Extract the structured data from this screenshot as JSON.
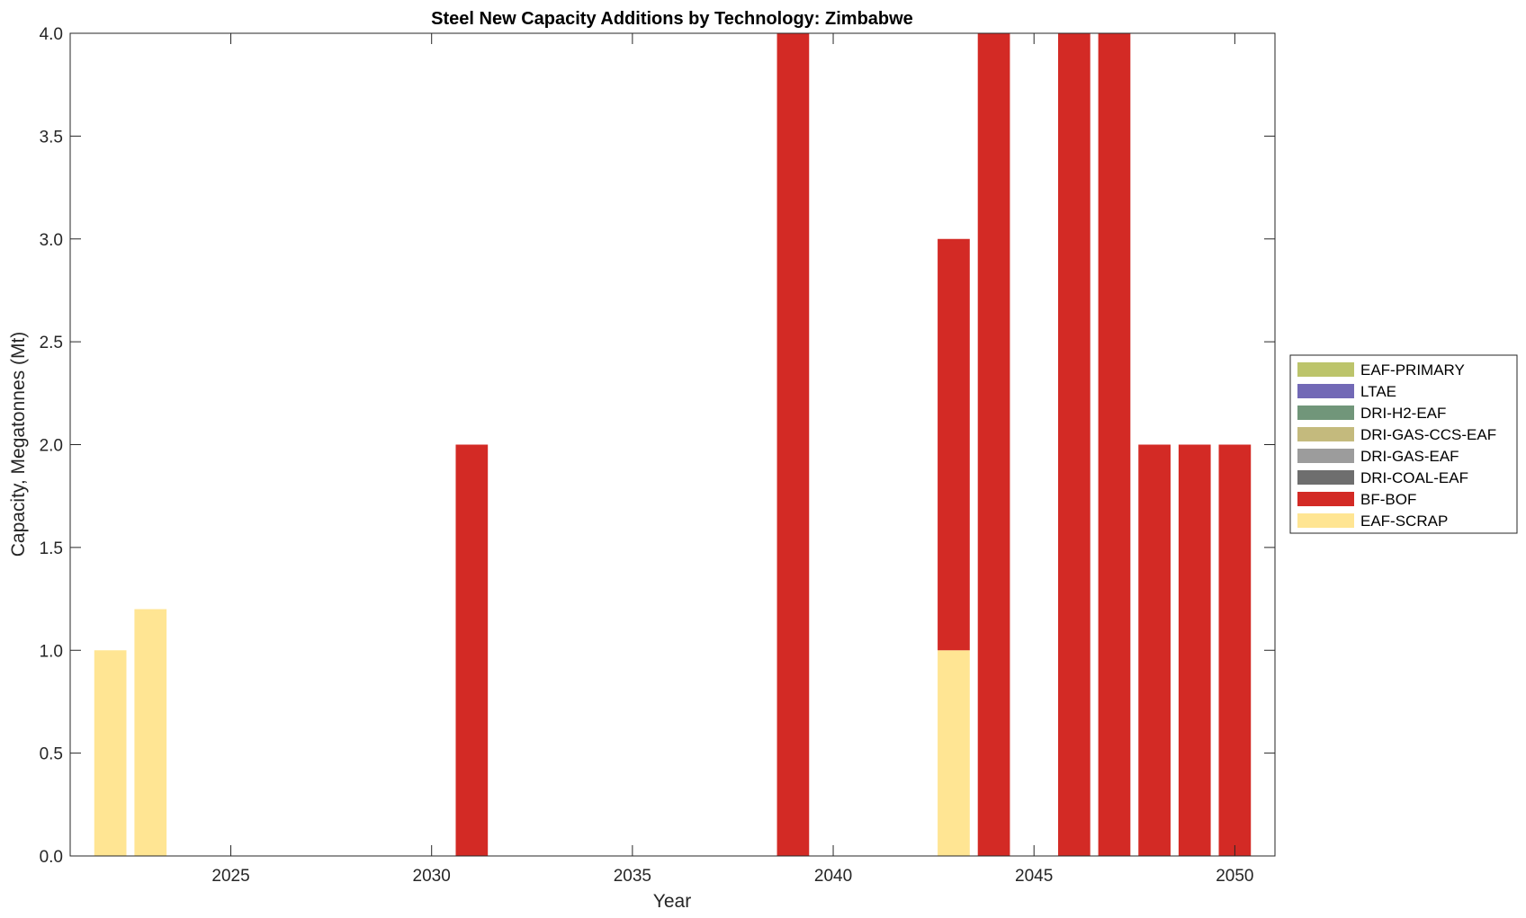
{
  "chart_data": {
    "type": "bar",
    "stacked": true,
    "title": "Steel New Capacity Additions by Technology: Zimbabwe",
    "xlabel": "Year",
    "ylabel": "Capacity, Megatonnes (Mt)",
    "xlim": [
      2021,
      2051
    ],
    "ylim": [
      0,
      4
    ],
    "xticks": [
      2025,
      2030,
      2035,
      2040,
      2045,
      2050
    ],
    "yticks": [
      "0.0",
      "0.5",
      "1.0",
      "1.5",
      "2.0",
      "2.5",
      "3.0",
      "3.5",
      "4.0"
    ],
    "grid": false,
    "legend_placement": "right",
    "categories": [
      2022,
      2023,
      2031,
      2039,
      2043,
      2044,
      2046,
      2047,
      2048,
      2049,
      2050
    ],
    "series": [
      {
        "name": "EAF-SCRAP",
        "color": "#FFE593",
        "values": [
          1.0,
          1.2,
          0,
          0,
          1.0,
          0,
          0,
          0,
          0,
          0,
          0
        ]
      },
      {
        "name": "BF-BOF",
        "color": "#D32A25",
        "values": [
          0,
          0,
          2.0,
          4.0,
          2.0,
          4.0,
          4.0,
          4.0,
          2.0,
          2.0,
          2.0
        ]
      },
      {
        "name": "DRI-COAL-EAF",
        "color": "#6E6E6E",
        "values": [
          0,
          0,
          0,
          0,
          0,
          0,
          0,
          0,
          0,
          0,
          0
        ]
      },
      {
        "name": "DRI-GAS-EAF",
        "color": "#9C9C9C",
        "values": [
          0,
          0,
          0,
          0,
          0,
          0,
          0,
          0,
          0,
          0,
          0
        ]
      },
      {
        "name": "DRI-GAS-CCS-EAF",
        "color": "#C4BA7D",
        "values": [
          0,
          0,
          0,
          0,
          0,
          0,
          0,
          0,
          0,
          0,
          0
        ]
      },
      {
        "name": "DRI-H2-EAF",
        "color": "#71967A",
        "values": [
          0,
          0,
          0,
          0,
          0,
          0,
          0,
          0,
          0,
          0,
          0
        ]
      },
      {
        "name": "LTAE",
        "color": "#7269B6",
        "values": [
          0,
          0,
          0,
          0,
          0,
          0,
          0,
          0,
          0,
          0,
          0
        ]
      },
      {
        "name": "EAF-PRIMARY",
        "color": "#BCC46B",
        "values": [
          0,
          0,
          0,
          0,
          0,
          0,
          0,
          0,
          0,
          0,
          0
        ]
      }
    ],
    "legend_order": [
      "EAF-PRIMARY",
      "LTAE",
      "DRI-H2-EAF",
      "DRI-GAS-CCS-EAF",
      "DRI-GAS-EAF",
      "DRI-COAL-EAF",
      "BF-BOF",
      "EAF-SCRAP"
    ]
  }
}
